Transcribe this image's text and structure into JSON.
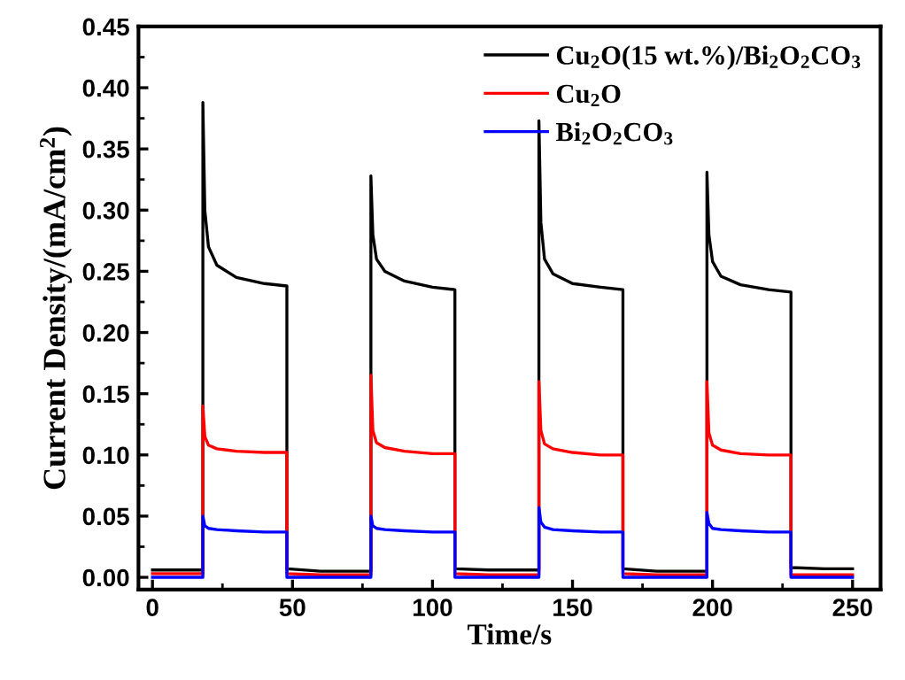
{
  "chart_data": {
    "type": "line",
    "xlabel": "Time/s",
    "ylabel": "Current Density/(mA/cm$^{2}$)",
    "xlim": [
      -5,
      260
    ],
    "ylim": [
      -0.01,
      0.45
    ],
    "xticks": [
      0,
      {
        "value": 25,
        "label": null
      },
      50,
      {
        "value": 75,
        "label": null
      },
      100,
      {
        "value": 125,
        "label": null
      },
      150,
      {
        "value": 175,
        "label": null
      },
      200,
      {
        "value": 225,
        "label": null
      },
      250
    ],
    "yticks": [
      {
        "value": 0,
        "label": "0.00"
      },
      {
        "value": 0.025,
        "label": null
      },
      {
        "value": 0.05,
        "label": "0.05"
      },
      {
        "value": 0.075,
        "label": null
      },
      {
        "value": 0.1,
        "label": "0.10"
      },
      {
        "value": 0.125,
        "label": null
      },
      {
        "value": 0.15,
        "label": "0.15"
      },
      {
        "value": 0.175,
        "label": null
      },
      {
        "value": 0.2,
        "label": "0.20"
      },
      {
        "value": 0.225,
        "label": null
      },
      {
        "value": 0.25,
        "label": "0.25"
      },
      {
        "value": 0.275,
        "label": null
      },
      {
        "value": 0.3,
        "label": "0.30"
      },
      {
        "value": 0.325,
        "label": null
      },
      {
        "value": 0.35,
        "label": "0.35"
      },
      {
        "value": 0.375,
        "label": null
      },
      {
        "value": 0.4,
        "label": "0.40"
      },
      {
        "value": 0.425,
        "label": null
      },
      {
        "value": 0.45,
        "label": "0.45"
      }
    ],
    "x": [
      0,
      18,
      18,
      18.7,
      20,
      23,
      30,
      40,
      48,
      48,
      60,
      78,
      78,
      78.7,
      80,
      83,
      90,
      100,
      108,
      108,
      120,
      138,
      138,
      138.7,
      140,
      143,
      150,
      160,
      168,
      168,
      180,
      198,
      198,
      198.7,
      200,
      203,
      210,
      220,
      228,
      228,
      240,
      250
    ],
    "series": [
      {
        "name": "Cu$_{2}$O(15 wt.%)/Bi$_{2}$O$_{2}$CO$_{3}$",
        "color": "#000000",
        "values": [
          0.006,
          0.006,
          0.388,
          0.3,
          0.27,
          0.255,
          0.245,
          0.24,
          0.238,
          0.007,
          0.005,
          0.005,
          0.328,
          0.28,
          0.26,
          0.25,
          0.242,
          0.237,
          0.235,
          0.007,
          0.006,
          0.006,
          0.373,
          0.29,
          0.26,
          0.248,
          0.24,
          0.237,
          0.235,
          0.007,
          0.005,
          0.005,
          0.331,
          0.28,
          0.258,
          0.246,
          0.239,
          0.235,
          0.233,
          0.008,
          0.007,
          0.007
        ]
      },
      {
        "name": "Cu$_{2}$O",
        "color": "#ff0000",
        "values": [
          0.003,
          0.003,
          0.14,
          0.115,
          0.108,
          0.105,
          0.103,
          0.102,
          0.102,
          0.003,
          0.002,
          0.002,
          0.165,
          0.12,
          0.11,
          0.106,
          0.103,
          0.101,
          0.101,
          0.003,
          0.002,
          0.002,
          0.16,
          0.12,
          0.109,
          0.105,
          0.102,
          0.1,
          0.1,
          0.003,
          0.002,
          0.002,
          0.16,
          0.118,
          0.108,
          0.104,
          0.101,
          0.1,
          0.1,
          0.002,
          0.002,
          0.002
        ]
      },
      {
        "name": "Bi$_{2}$O$_{2}$CO$_{3}$",
        "color": "#0000ff",
        "values": [
          0,
          0,
          0.05,
          0.042,
          0.04,
          0.039,
          0.038,
          0.037,
          0.037,
          0,
          0,
          0,
          0.05,
          0.042,
          0.04,
          0.039,
          0.038,
          0.037,
          0.037,
          0,
          0,
          0,
          0.057,
          0.045,
          0.041,
          0.039,
          0.038,
          0.037,
          0.037,
          0,
          0,
          0,
          0.053,
          0.044,
          0.04,
          0.039,
          0.038,
          0.037,
          0.037,
          0,
          0,
          0
        ]
      }
    ],
    "legend": "top right",
    "grid": false
  }
}
